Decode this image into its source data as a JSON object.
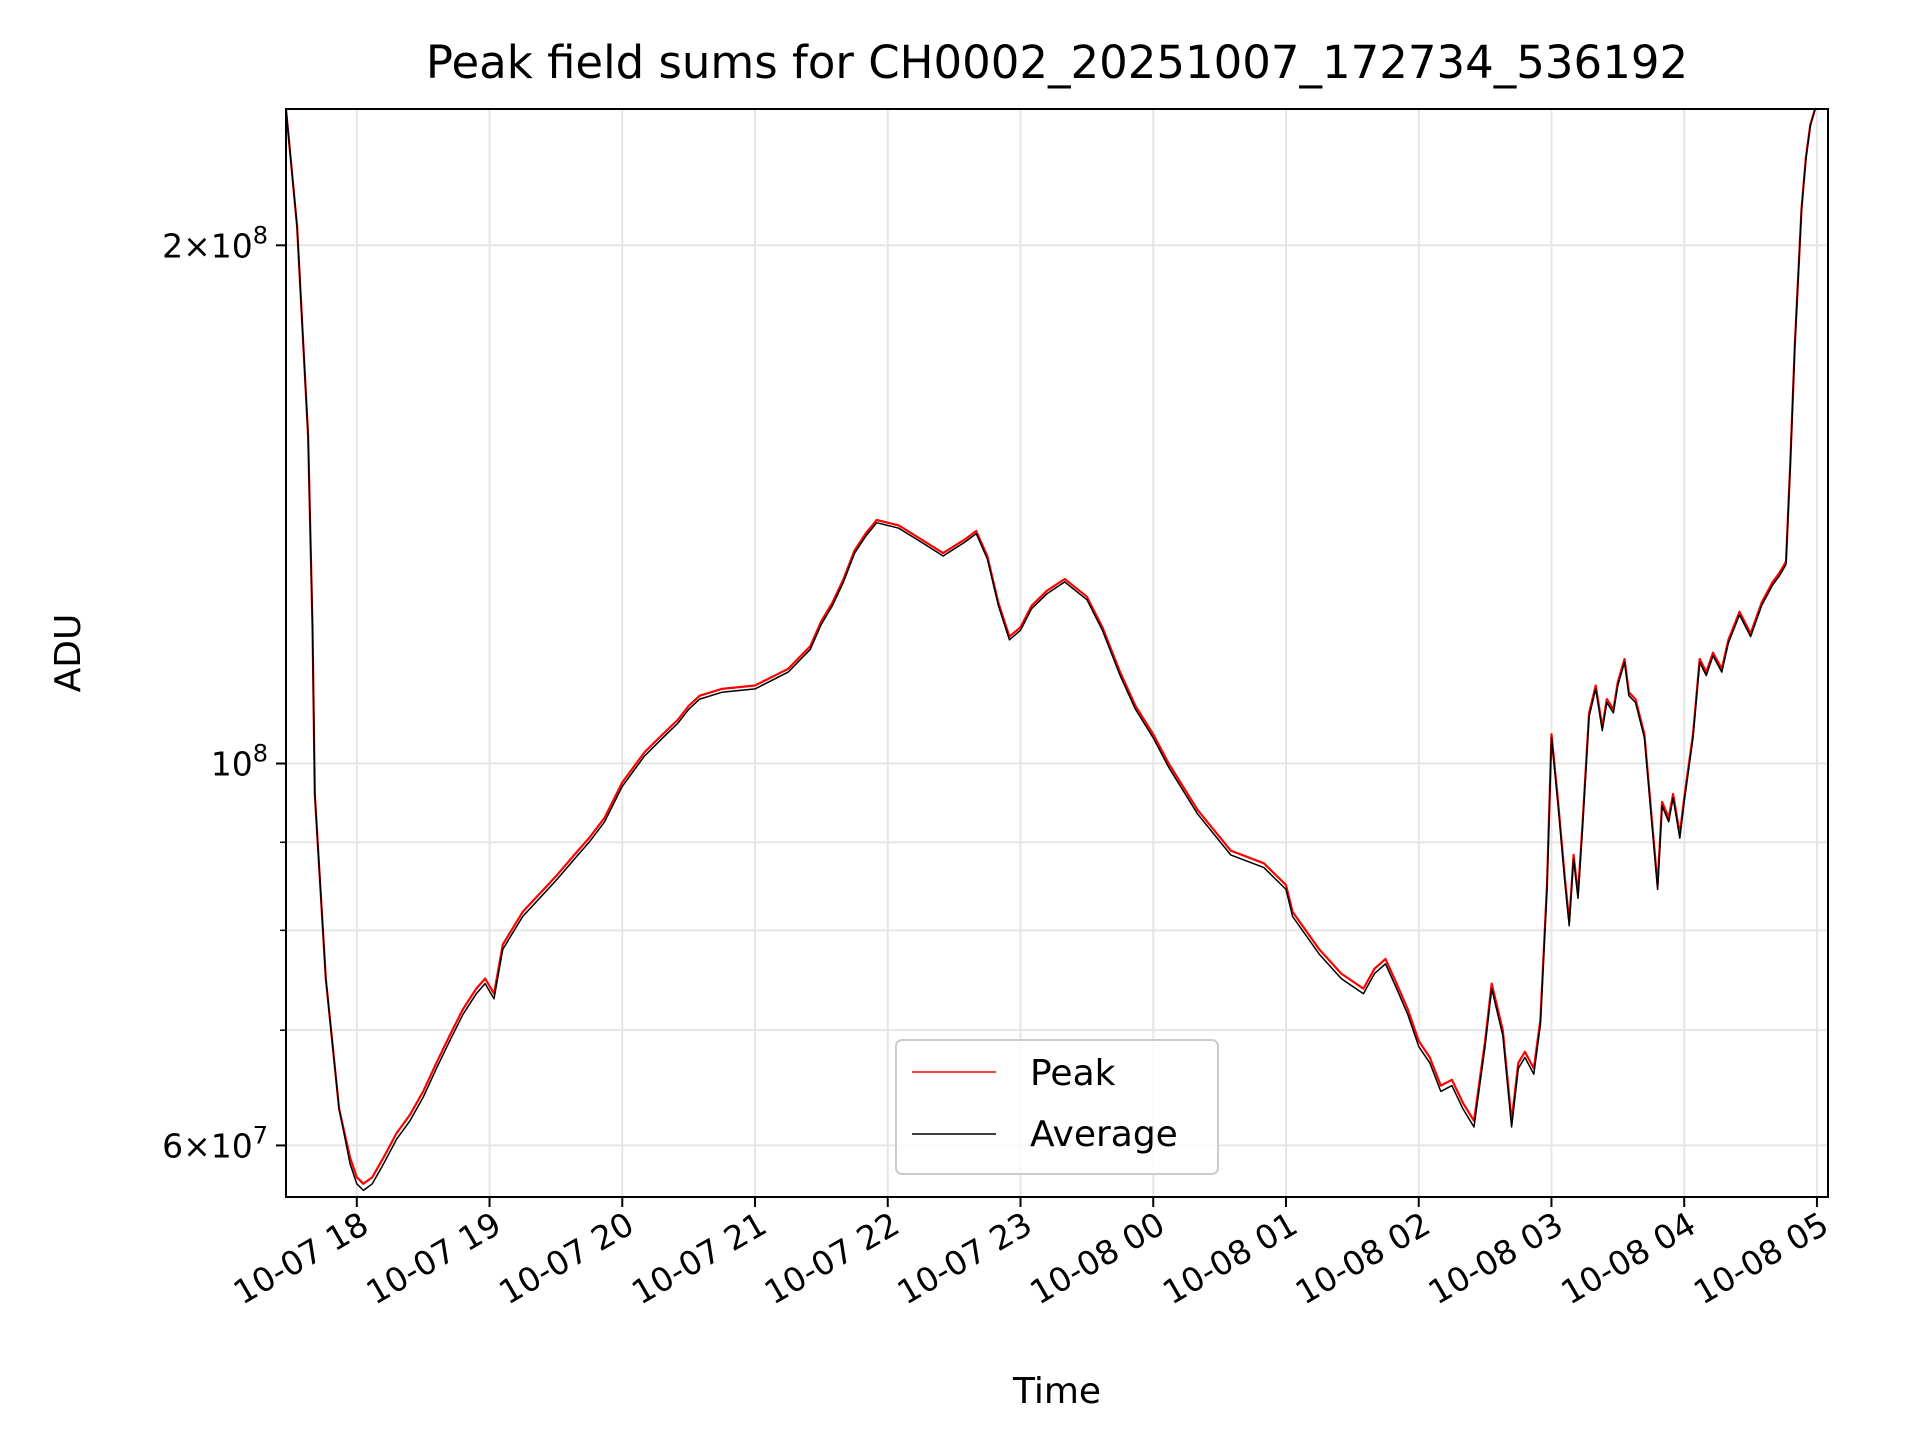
{
  "chart_data": {
    "type": "line",
    "title": "Peak field sums for CH0002_20251007_172734_536192",
    "xlabel": "Time",
    "ylabel": "ADU",
    "yscale": "log",
    "grid": true,
    "legend_position": "lower center",
    "xlim": [
      "2025-10-07 17:28",
      "2025-10-08 05:05"
    ],
    "ylim": [
      56000000,
      240000000
    ],
    "x_ticks": [
      {
        "value": "2025-10-07 18:00",
        "label": "10-07 18"
      },
      {
        "value": "2025-10-07 19:00",
        "label": "10-07 19"
      },
      {
        "value": "2025-10-07 20:00",
        "label": "10-07 20"
      },
      {
        "value": "2025-10-07 21:00",
        "label": "10-07 21"
      },
      {
        "value": "2025-10-07 22:00",
        "label": "10-07 22"
      },
      {
        "value": "2025-10-07 23:00",
        "label": "10-07 23"
      },
      {
        "value": "2025-10-08 00:00",
        "label": "10-08 00"
      },
      {
        "value": "2025-10-08 01:00",
        "label": "10-08 01"
      },
      {
        "value": "2025-10-08 02:00",
        "label": "10-08 02"
      },
      {
        "value": "2025-10-08 03:00",
        "label": "10-08 03"
      },
      {
        "value": "2025-10-08 04:00",
        "label": "10-08 04"
      },
      {
        "value": "2025-10-08 05:00",
        "label": "10-08 05"
      }
    ],
    "y_major_ticks": [
      {
        "value": 60000000,
        "label_mantissa": "6",
        "label_base": "10",
        "label_exp": "7"
      },
      {
        "value": 100000000,
        "label_mantissa": "",
        "label_base": "10",
        "label_exp": "8"
      },
      {
        "value": 200000000,
        "label_mantissa": "2",
        "label_base": "10",
        "label_exp": "8"
      }
    ],
    "y_minor_ticks": [
      70000000,
      80000000,
      90000000
    ],
    "series": [
      {
        "name": "Peak",
        "color": "#ff0000",
        "x": [
          "2025-10-07 17:28",
          "2025-10-07 17:33",
          "2025-10-07 17:38",
          "2025-10-07 17:40",
          "2025-10-07 17:41",
          "2025-10-07 17:46",
          "2025-10-07 17:52",
          "2025-10-07 17:57",
          "2025-10-07 18:00",
          "2025-10-07 18:03",
          "2025-10-07 18:07",
          "2025-10-07 18:12",
          "2025-10-07 18:18",
          "2025-10-07 18:24",
          "2025-10-07 18:30",
          "2025-10-07 18:36",
          "2025-10-07 18:42",
          "2025-10-07 18:48",
          "2025-10-07 18:54",
          "2025-10-07 18:58",
          "2025-10-07 19:02",
          "2025-10-07 19:06",
          "2025-10-07 19:15",
          "2025-10-07 19:30",
          "2025-10-07 19:40",
          "2025-10-07 19:45",
          "2025-10-07 19:52",
          "2025-10-07 20:00",
          "2025-10-07 20:10",
          "2025-10-07 20:15",
          "2025-10-07 20:20",
          "2025-10-07 20:25",
          "2025-10-07 20:30",
          "2025-10-07 20:35",
          "2025-10-07 20:45",
          "2025-10-07 21:00",
          "2025-10-07 21:15",
          "2025-10-07 21:25",
          "2025-10-07 21:30",
          "2025-10-07 21:35",
          "2025-10-07 21:40",
          "2025-10-07 21:45",
          "2025-10-07 21:50",
          "2025-10-07 21:55",
          "2025-10-07 22:05",
          "2025-10-07 22:15",
          "2025-10-07 22:25",
          "2025-10-07 22:35",
          "2025-10-07 22:40",
          "2025-10-07 22:45",
          "2025-10-07 22:50",
          "2025-10-07 22:55",
          "2025-10-07 23:00",
          "2025-10-07 23:05",
          "2025-10-07 23:12",
          "2025-10-07 23:20",
          "2025-10-07 23:30",
          "2025-10-07 23:37",
          "2025-10-07 23:45",
          "2025-10-07 23:52",
          "2025-10-08 00:00",
          "2025-10-08 00:07",
          "2025-10-08 00:20",
          "2025-10-08 00:35",
          "2025-10-08 00:50",
          "2025-10-08 01:00",
          "2025-10-08 01:03",
          "2025-10-08 01:15",
          "2025-10-08 01:25",
          "2025-10-08 01:35",
          "2025-10-08 01:40",
          "2025-10-08 01:45",
          "2025-10-08 01:50",
          "2025-10-08 01:55",
          "2025-10-08 02:00",
          "2025-10-08 02:05",
          "2025-10-08 02:10",
          "2025-10-08 02:15",
          "2025-10-08 02:20",
          "2025-10-08 02:25",
          "2025-10-08 02:30",
          "2025-10-08 02:33",
          "2025-10-08 02:38",
          "2025-10-08 02:42",
          "2025-10-08 02:45",
          "2025-10-08 02:48",
          "2025-10-08 02:52",
          "2025-10-08 02:55",
          "2025-10-08 02:58",
          "2025-10-08 03:00",
          "2025-10-08 03:03",
          "2025-10-08 03:06",
          "2025-10-08 03:08",
          "2025-10-08 03:10",
          "2025-10-08 03:12",
          "2025-10-08 03:14",
          "2025-10-08 03:17",
          "2025-10-08 03:20",
          "2025-10-08 03:23",
          "2025-10-08 03:25",
          "2025-10-08 03:28",
          "2025-10-08 03:30",
          "2025-10-08 03:33",
          "2025-10-08 03:35",
          "2025-10-08 03:38",
          "2025-10-08 03:42",
          "2025-10-08 03:45",
          "2025-10-08 03:48",
          "2025-10-08 03:50",
          "2025-10-08 03:53",
          "2025-10-08 03:55",
          "2025-10-08 03:58",
          "2025-10-08 04:00",
          "2025-10-08 04:04",
          "2025-10-08 04:07",
          "2025-10-08 04:10",
          "2025-10-08 04:13",
          "2025-10-08 04:17",
          "2025-10-08 04:20",
          "2025-10-08 04:25",
          "2025-10-08 04:30",
          "2025-10-08 04:35",
          "2025-10-08 04:40",
          "2025-10-08 04:43",
          "2025-10-08 04:46",
          "2025-10-08 04:48",
          "2025-10-08 04:50",
          "2025-10-08 04:53",
          "2025-10-08 04:55",
          "2025-10-08 04:57",
          "2025-10-08 05:00"
        ],
        "y": [
          240000000,
          205000000,
          155000000,
          120000000,
          96000000,
          75000000,
          63000000,
          59000000,
          57500000,
          57000000,
          57500000,
          59000000,
          61000000,
          62500000,
          64500000,
          67000000,
          69500000,
          72000000,
          74000000,
          75000000,
          73500000,
          78500000,
          82000000,
          86000000,
          89000000,
          90500000,
          93000000,
          97500000,
          101500000,
          103000000,
          104500000,
          106000000,
          108000000,
          109500000,
          110500000,
          111000000,
          113500000,
          117000000,
          121000000,
          124000000,
          128000000,
          133000000,
          136000000,
          138500000,
          137500000,
          135000000,
          132500000,
          135000000,
          136500000,
          132000000,
          124000000,
          118500000,
          120000000,
          123500000,
          126000000,
          128000000,
          125000000,
          120000000,
          113000000,
          108000000,
          104000000,
          100000000,
          94000000,
          89000000,
          87500000,
          85000000,
          82000000,
          78000000,
          75500000,
          74000000,
          76000000,
          77000000,
          74500000,
          72000000,
          69000000,
          67500000,
          65000000,
          65500000,
          63500000,
          62000000,
          69000000,
          74500000,
          70000000,
          62000000,
          67000000,
          68000000,
          66500000,
          71000000,
          85000000,
          104000000,
          95000000,
          86000000,
          81000000,
          88500000,
          84000000,
          92000000,
          107000000,
          111000000,
          105000000,
          109000000,
          107500000,
          111500000,
          115000000,
          110000000,
          109000000,
          104000000,
          94000000,
          85000000,
          95000000,
          93000000,
          96000000,
          91000000,
          95500000,
          104000000,
          115000000,
          113000000,
          116000000,
          113500000,
          118000000,
          122500000,
          119000000,
          124000000,
          127500000,
          129000000,
          131000000,
          150000000,
          175000000,
          210000000,
          225000000,
          235000000,
          242000000
        ]
      },
      {
        "name": "Average",
        "color": "#000000",
        "x": [
          "2025-10-07 17:28",
          "2025-10-07 17:33",
          "2025-10-07 17:38",
          "2025-10-07 17:40",
          "2025-10-07 17:41",
          "2025-10-07 17:46",
          "2025-10-07 17:52",
          "2025-10-07 17:57",
          "2025-10-07 18:00",
          "2025-10-07 18:03",
          "2025-10-07 18:07",
          "2025-10-07 18:12",
          "2025-10-07 18:18",
          "2025-10-07 18:24",
          "2025-10-07 18:30",
          "2025-10-07 18:36",
          "2025-10-07 18:42",
          "2025-10-07 18:48",
          "2025-10-07 18:54",
          "2025-10-07 18:58",
          "2025-10-07 19:02",
          "2025-10-07 19:06",
          "2025-10-07 19:15",
          "2025-10-07 19:30",
          "2025-10-07 19:40",
          "2025-10-07 19:45",
          "2025-10-07 19:52",
          "2025-10-07 20:00",
          "2025-10-07 20:10",
          "2025-10-07 20:15",
          "2025-10-07 20:20",
          "2025-10-07 20:25",
          "2025-10-07 20:30",
          "2025-10-07 20:35",
          "2025-10-07 20:45",
          "2025-10-07 21:00",
          "2025-10-07 21:15",
          "2025-10-07 21:25",
          "2025-10-07 21:30",
          "2025-10-07 21:35",
          "2025-10-07 21:40",
          "2025-10-07 21:45",
          "2025-10-07 21:50",
          "2025-10-07 21:55",
          "2025-10-07 22:05",
          "2025-10-07 22:15",
          "2025-10-07 22:25",
          "2025-10-07 22:35",
          "2025-10-07 22:40",
          "2025-10-07 22:45",
          "2025-10-07 22:50",
          "2025-10-07 22:55",
          "2025-10-07 23:00",
          "2025-10-07 23:05",
          "2025-10-07 23:12",
          "2025-10-07 23:20",
          "2025-10-07 23:30",
          "2025-10-07 23:37",
          "2025-10-07 23:45",
          "2025-10-07 23:52",
          "2025-10-08 00:00",
          "2025-10-08 00:07",
          "2025-10-08 00:20",
          "2025-10-08 00:35",
          "2025-10-08 00:50",
          "2025-10-08 01:00",
          "2025-10-08 01:03",
          "2025-10-08 01:15",
          "2025-10-08 01:25",
          "2025-10-08 01:35",
          "2025-10-08 01:40",
          "2025-10-08 01:45",
          "2025-10-08 01:50",
          "2025-10-08 01:55",
          "2025-10-08 02:00",
          "2025-10-08 02:05",
          "2025-10-08 02:10",
          "2025-10-08 02:15",
          "2025-10-08 02:20",
          "2025-10-08 02:25",
          "2025-10-08 02:30",
          "2025-10-08 02:33",
          "2025-10-08 02:38",
          "2025-10-08 02:42",
          "2025-10-08 02:45",
          "2025-10-08 02:48",
          "2025-10-08 02:52",
          "2025-10-08 02:55",
          "2025-10-08 02:58",
          "2025-10-08 03:00",
          "2025-10-08 03:03",
          "2025-10-08 03:06",
          "2025-10-08 03:08",
          "2025-10-08 03:10",
          "2025-10-08 03:12",
          "2025-10-08 03:14",
          "2025-10-08 03:17",
          "2025-10-08 03:20",
          "2025-10-08 03:23",
          "2025-10-08 03:25",
          "2025-10-08 03:28",
          "2025-10-08 03:30",
          "2025-10-08 03:33",
          "2025-10-08 03:35",
          "2025-10-08 03:38",
          "2025-10-08 03:42",
          "2025-10-08 03:45",
          "2025-10-08 03:48",
          "2025-10-08 03:50",
          "2025-10-08 03:53",
          "2025-10-08 03:55",
          "2025-10-08 03:58",
          "2025-10-08 04:00",
          "2025-10-08 04:04",
          "2025-10-08 04:07",
          "2025-10-08 04:10",
          "2025-10-08 04:13",
          "2025-10-08 04:17",
          "2025-10-08 04:20",
          "2025-10-08 04:25",
          "2025-10-08 04:30",
          "2025-10-08 04:35",
          "2025-10-08 04:40",
          "2025-10-08 04:43",
          "2025-10-08 04:46",
          "2025-10-08 04:48",
          "2025-10-08 04:50",
          "2025-10-08 04:53",
          "2025-10-08 04:55",
          "2025-10-08 04:57",
          "2025-10-08 05:00"
        ],
        "y": [
          240000000,
          205000000,
          155000000,
          120000000,
          96000000,
          75000000,
          63000000,
          58500000,
          57000000,
          56500000,
          57000000,
          58500000,
          60500000,
          62000000,
          64000000,
          66500000,
          69000000,
          71500000,
          73500000,
          74500000,
          73000000,
          78000000,
          81500000,
          85500000,
          88500000,
          90000000,
          92500000,
          97000000,
          101000000,
          102500000,
          104000000,
          105500000,
          107500000,
          109000000,
          110000000,
          110500000,
          113000000,
          116500000,
          120500000,
          123500000,
          127500000,
          132500000,
          135500000,
          138000000,
          137000000,
          134500000,
          132000000,
          134500000,
          136000000,
          131500000,
          123500000,
          118000000,
          119500000,
          123000000,
          125500000,
          127500000,
          124500000,
          119500000,
          112500000,
          107500000,
          103500000,
          99500000,
          93500000,
          88500000,
          87000000,
          84500000,
          81500000,
          77500000,
          75000000,
          73500000,
          75500000,
          76500000,
          74000000,
          71500000,
          68500000,
          67000000,
          64500000,
          65000000,
          63000000,
          61500000,
          68500000,
          74000000,
          69500000,
          61500000,
          66500000,
          67500000,
          66000000,
          70500000,
          84500000,
          103500000,
          94500000,
          85500000,
          80500000,
          88000000,
          83500000,
          91500000,
          106500000,
          110500000,
          104500000,
          108500000,
          107000000,
          111000000,
          114500000,
          109500000,
          108500000,
          103500000,
          93500000,
          84500000,
          94500000,
          92500000,
          95500000,
          90500000,
          95000000,
          103500000,
          114500000,
          112500000,
          115500000,
          113000000,
          117500000,
          122000000,
          118500000,
          123500000,
          127000000,
          128500000,
          130500000,
          149500000,
          174500000,
          209500000,
          224500000,
          234500000,
          242000000
        ]
      }
    ]
  }
}
